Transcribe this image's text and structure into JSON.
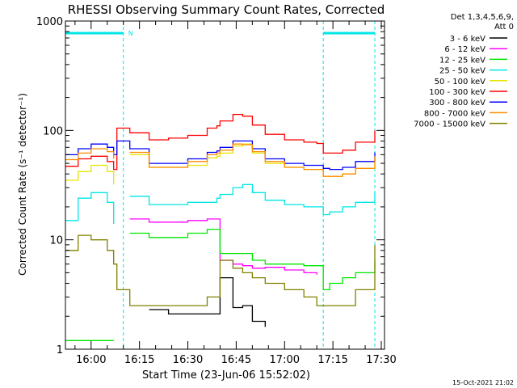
{
  "chart_data": {
    "type": "line",
    "title": "RHESSI Observing Summary Count Rates, Corrected",
    "xlabel": "Start Time (23-Jun-06 15:52:02)",
    "ylabel": "Corrected Count Rate (s⁻¹ detector⁻¹)",
    "y_scale": "log",
    "ylim": [
      1,
      1000
    ],
    "y_ticks": [
      {
        "value": 1,
        "label": "1"
      },
      {
        "value": 10,
        "label": "10"
      },
      {
        "value": 100,
        "label": "100"
      },
      {
        "value": 1000,
        "label": "1000"
      }
    ],
    "xlim": [
      "15:52:02",
      "17:31:00"
    ],
    "x_ticks": [
      "16:00",
      "16:15",
      "16:30",
      "16:45",
      "17:00",
      "17:15",
      "17:30"
    ],
    "legend_position": "right",
    "legend_header": [
      "Det 1,3,4,5,6,9,",
      "Att 0"
    ],
    "footer": "15-Oct-2021 21:02",
    "annotations": [
      {
        "type": "night",
        "from": "15:52:02",
        "to": "16:10:00",
        "marker": "N"
      },
      {
        "type": "night",
        "from": "17:12:00",
        "to": "17:28:00",
        "marker": ""
      },
      {
        "type": "vline",
        "at": "16:10:00"
      },
      {
        "type": "vline",
        "at": "17:12:00"
      },
      {
        "type": "vline",
        "at": "17:28:00"
      }
    ],
    "x_points": [
      "15:52",
      "15:56",
      "16:00",
      "16:05",
      "16:07",
      "16:08",
      "16:12",
      "16:18",
      "16:24",
      "16:30",
      "16:36",
      "16:39",
      "16:40",
      "16:44",
      "16:47",
      "16:50",
      "16:54",
      "17:00",
      "17:06",
      "17:10",
      "17:12",
      "17:14",
      "17:18",
      "17:22",
      "17:28"
    ],
    "series": [
      {
        "name": "3 - 6 keV",
        "color": "#000000",
        "values": [
          null,
          null,
          null,
          null,
          null,
          null,
          null,
          2.3,
          2.1,
          2.1,
          2.1,
          2.1,
          4.5,
          2.4,
          2.5,
          1.8,
          1.6,
          null,
          null,
          null,
          null,
          null,
          null,
          null,
          null
        ]
      },
      {
        "name": "6 - 12 keV",
        "color": "#ff00ff",
        "values": [
          null,
          null,
          null,
          null,
          null,
          null,
          15.5,
          14.5,
          14.5,
          15,
          15.5,
          15.5,
          6.5,
          6,
          5.8,
          5.5,
          5.6,
          5.3,
          5.0,
          4.8,
          null,
          null,
          null,
          null,
          null
        ]
      },
      {
        "name": "12 - 25 keV",
        "color": "#00e600",
        "values": [
          1.2,
          1.2,
          1.2,
          1.2,
          1.2,
          null,
          11.5,
          10.5,
          10.5,
          11.5,
          12.5,
          12.5,
          7.5,
          7.5,
          7.5,
          6.5,
          6.0,
          6.0,
          5.8,
          5.8,
          3.5,
          4.0,
          4.5,
          5.0,
          6.5
        ]
      },
      {
        "name": "25 - 50 keV",
        "color": "#00e6e6",
        "values": [
          15,
          24,
          27,
          22,
          14,
          null,
          25,
          21,
          21,
          22,
          22,
          24,
          26,
          30,
          32,
          27,
          23,
          21,
          20,
          20,
          17,
          18,
          20,
          22,
          27
        ]
      },
      {
        "name": "50 - 100 keV",
        "color": "#e6e600",
        "values": [
          35,
          42,
          48,
          42,
          32,
          null,
          60,
          46,
          46,
          48,
          56,
          58,
          62,
          72,
          75,
          62,
          50,
          46,
          44,
          44,
          38,
          38,
          40,
          45,
          55
        ]
      },
      {
        "name": "100 - 300 keV",
        "color": "#ff0000",
        "values": [
          47,
          55,
          58,
          52,
          44,
          105,
          95,
          82,
          85,
          90,
          105,
          110,
          122,
          140,
          135,
          112,
          92,
          82,
          78,
          76,
          62,
          62,
          66,
          78,
          100
        ]
      },
      {
        "name": "300 - 800 keV",
        "color": "#0000ff",
        "values": [
          60,
          68,
          75,
          70,
          60,
          80,
          68,
          50,
          50,
          55,
          63,
          65,
          70,
          80,
          80,
          68,
          55,
          50,
          48,
          48,
          45,
          44,
          46,
          52,
          63
        ]
      },
      {
        "name": "800 - 7000 keV",
        "color": "#ff8c00",
        "values": [
          54,
          62,
          68,
          64,
          55,
          null,
          63,
          46,
          46,
          52,
          60,
          62,
          66,
          75,
          74,
          64,
          52,
          46,
          44,
          44,
          38,
          38,
          40,
          45,
          58
        ]
      },
      {
        "name": "7000 - 15000 keV",
        "color": "#808000",
        "values": [
          8,
          11,
          10,
          8,
          6,
          3.5,
          2.5,
          2.5,
          2.5,
          2.5,
          3.0,
          3.0,
          6.5,
          5.5,
          5.0,
          4.5,
          4.0,
          3.5,
          3.0,
          2.5,
          2.5,
          2.5,
          2.5,
          3.5,
          9
        ]
      }
    ]
  }
}
